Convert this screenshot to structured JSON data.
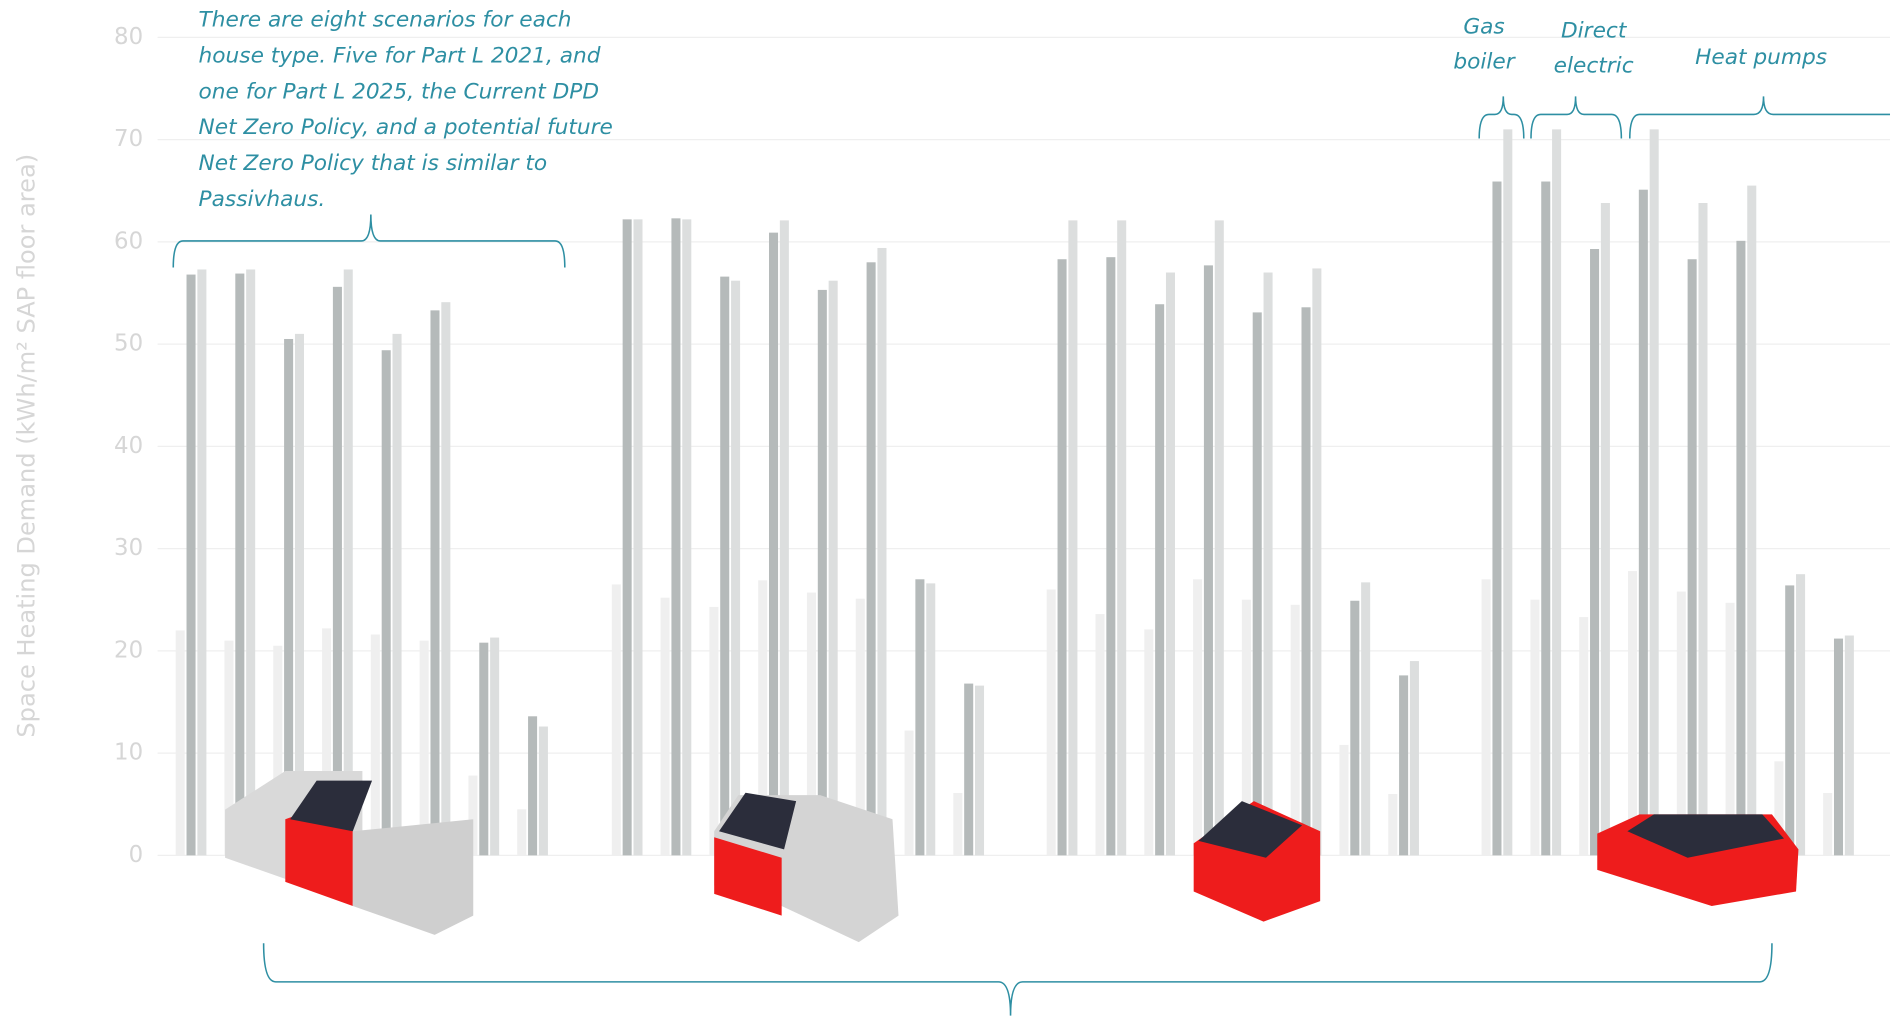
{
  "chart_data": {
    "type": "bar",
    "y_label": "Space Heating Demand (kWh/m² SAP floor area)",
    "ylim": [
      0,
      80
    ],
    "yticks": [
      0,
      10,
      20,
      30,
      40,
      50,
      60,
      70,
      80
    ],
    "grid": true,
    "categories": [
      null,
      null,
      null,
      null,
      null,
      null,
      null,
      null,
      null,
      null,
      null,
      null,
      null,
      null,
      null,
      null,
      null,
      null,
      null,
      null,
      null,
      null,
      null,
      null,
      null,
      null,
      null,
      null,
      null,
      null,
      null,
      null
    ],
    "series": [
      {
        "color": "#efefef",
        "values": [
          22,
          21,
          20.5,
          22.2,
          21.6,
          21,
          7.8,
          4.5,
          26.5,
          25.2,
          24.3,
          26.9,
          25.7,
          25.1,
          12.2,
          6.1,
          26,
          23.6,
          22.1,
          27,
          25,
          24.5,
          10.8,
          6,
          27,
          25,
          23.3,
          27.8,
          25.8,
          24.7,
          9.2,
          6.1
        ]
      },
      {
        "color": "#b5baba",
        "values": [
          56.8,
          56.9,
          50.5,
          55.6,
          49.4,
          53.3,
          20.8,
          13.6,
          62.2,
          62.3,
          56.6,
          60.9,
          55.3,
          58,
          27,
          16.8,
          58.3,
          58.5,
          53.9,
          57.7,
          53.1,
          53.6,
          24.9,
          17.6,
          65.9,
          65.9,
          59.3,
          65.1,
          58.3,
          60.1,
          26.4,
          21.2
        ]
      },
      {
        "color": "#dcdede",
        "values": [
          57.3,
          57.3,
          51,
          57.3,
          51,
          54.1,
          21.3,
          12.6,
          62.2,
          62.2,
          56.2,
          62.1,
          56.2,
          59.4,
          26.6,
          16.6,
          62.1,
          62.1,
          57,
          62.1,
          57,
          57.4,
          26.7,
          19,
          71,
          71,
          63.8,
          71,
          63.8,
          65.5,
          27.5,
          21.5
        ]
      }
    ],
    "annotations": [
      {
        "lines": [
          "There are eight scenarios for each",
          "house type. Five for Part L 2021, and",
          "one for Part L 2025, the Current DPD",
          "Net Zero Policy, and a potential future",
          "Net Zero Policy that is similar to",
          "Passivhaus."
        ]
      },
      {
        "lines": [
          "Gas",
          "boiler"
        ]
      },
      {
        "lines": [
          "Direct",
          "electric"
        ]
      },
      {
        "lines": [
          "Heat pumps"
        ]
      }
    ]
  }
}
